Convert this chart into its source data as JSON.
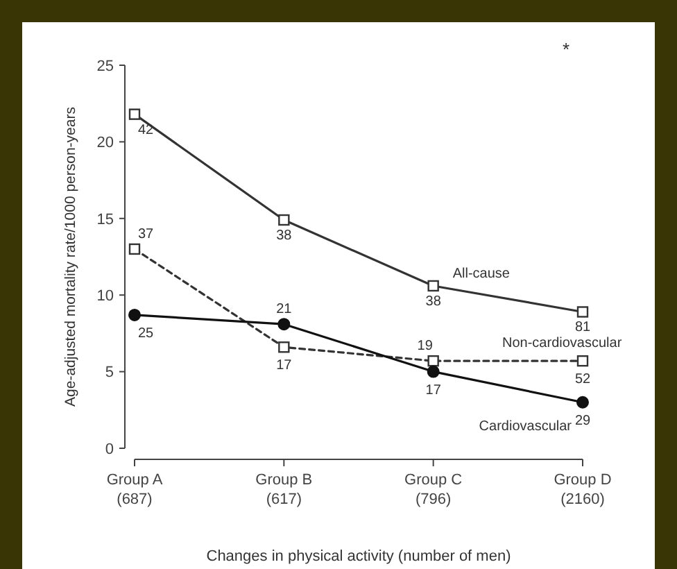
{
  "chart_data": {
    "type": "line",
    "xlabel": "Changes in physical activity (number of men)",
    "ylabel": "Age-adjusted mortality rate/1000 person-years",
    "categories": [
      "Group A\n(687)",
      "Group B\n(617)",
      "Group C\n(796)",
      "Group D\n(2160)"
    ],
    "ylim": [
      0,
      25
    ],
    "yticks": [
      0,
      5,
      10,
      15,
      20,
      25
    ],
    "line_style": "solid",
    "annotations": [
      "*",
      {
        "text": "42",
        "x": "Group A\n(687)",
        "y": 21.8
      },
      {
        "text": "38",
        "x": "Group B\n(617)",
        "y": 14.9
      },
      {
        "text": "38",
        "x": "Group C\n(796)",
        "y": 10.6
      },
      {
        "text": "81",
        "x": "Group D\n(2160)",
        "y": 8.9
      },
      {
        "text": "37",
        "x": "Group A\n(687)",
        "y": 13.0
      },
      {
        "text": "17",
        "x": "Group B\n(617)",
        "y": 6.6
      },
      {
        "text": "19",
        "x": "Group C\n(796)",
        "y": 5.7
      },
      {
        "text": "52",
        "x": "Group D\n(2160)",
        "y": 5.7
      },
      {
        "text": "25",
        "x": "Group A\n(687)",
        "y": 8.7
      },
      {
        "text": "21",
        "x": "Group B\n(617)",
        "y": 8.1
      },
      {
        "text": "17",
        "x": "Group C\n(796)",
        "y": 5.0
      },
      {
        "text": "29",
        "x": "Group D\n(2160)",
        "y": 3.0
      }
    ],
    "series": [
      {
        "name": "All-cause",
        "color": "#333333",
        "marker": "square",
        "values": [
          21.8,
          14.9,
          10.6,
          8.9
        ]
      },
      {
        "name": "Non-cardiovascular",
        "color": "#333333",
        "marker": "square",
        "line_style": "dashed",
        "values": [
          13.0,
          6.6,
          5.7,
          5.7
        ]
      },
      {
        "name": "Cardiovascular",
        "color": "#111111",
        "marker": "circle",
        "values": [
          8.7,
          8.1,
          5.0,
          3.0
        ]
      }
    ]
  }
}
